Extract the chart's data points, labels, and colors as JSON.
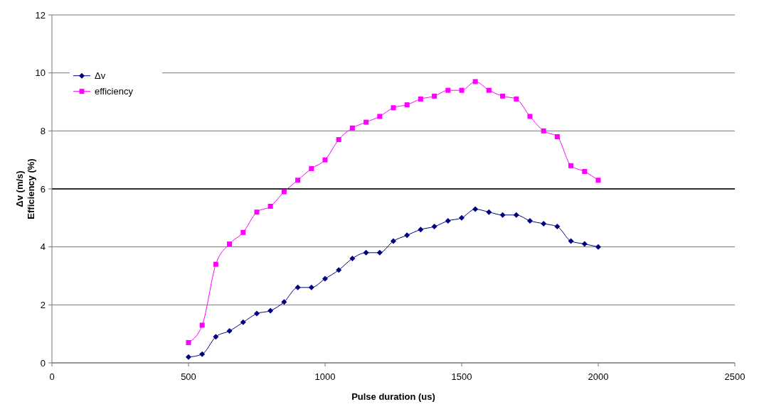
{
  "chart_data": {
    "type": "line",
    "xlabel": "Pulse duration (us)",
    "ylabel": "Δv (m/s)\nEfficiency (%)",
    "x": [
      500,
      550,
      600,
      650,
      700,
      750,
      800,
      850,
      900,
      950,
      1000,
      1050,
      1100,
      1150,
      1200,
      1250,
      1300,
      1350,
      1400,
      1450,
      1500,
      1550,
      1600,
      1650,
      1700,
      1750,
      1800,
      1850,
      1900,
      1950,
      2000
    ],
    "series": [
      {
        "name": "Δv",
        "color": "#000080",
        "marker": "diamond",
        "values": [
          0.2,
          0.3,
          0.9,
          1.1,
          1.4,
          1.7,
          1.8,
          2.1,
          2.6,
          2.6,
          2.9,
          3.2,
          3.6,
          3.8,
          3.8,
          4.2,
          4.4,
          4.6,
          4.7,
          4.9,
          5.0,
          5.3,
          5.2,
          5.1,
          5.1,
          4.9,
          4.8,
          4.7,
          4.2,
          4.1,
          4.0
        ]
      },
      {
        "name": "efficiency",
        "color": "#ff00ff",
        "marker": "square",
        "values": [
          0.7,
          1.3,
          3.4,
          4.1,
          4.5,
          5.2,
          5.4,
          5.9,
          6.3,
          6.7,
          7.0,
          7.7,
          8.1,
          8.3,
          8.5,
          8.8,
          8.9,
          9.1,
          9.2,
          9.4,
          9.4,
          9.7,
          9.4,
          9.2,
          9.1,
          8.5,
          8.0,
          7.8,
          6.8,
          6.6,
          6.3
        ]
      }
    ],
    "xlim": [
      0,
      2500
    ],
    "xticks": [
      0,
      500,
      1000,
      1500,
      2000,
      2500
    ],
    "ylim": [
      0,
      12
    ],
    "yticks": [
      0,
      2,
      4,
      6,
      8,
      10,
      12
    ],
    "ref_lines": [
      {
        "axis": "y",
        "value": 6,
        "color": "#000000"
      }
    ],
    "grid": "y",
    "legend": "top left",
    "line_style": "solid"
  }
}
